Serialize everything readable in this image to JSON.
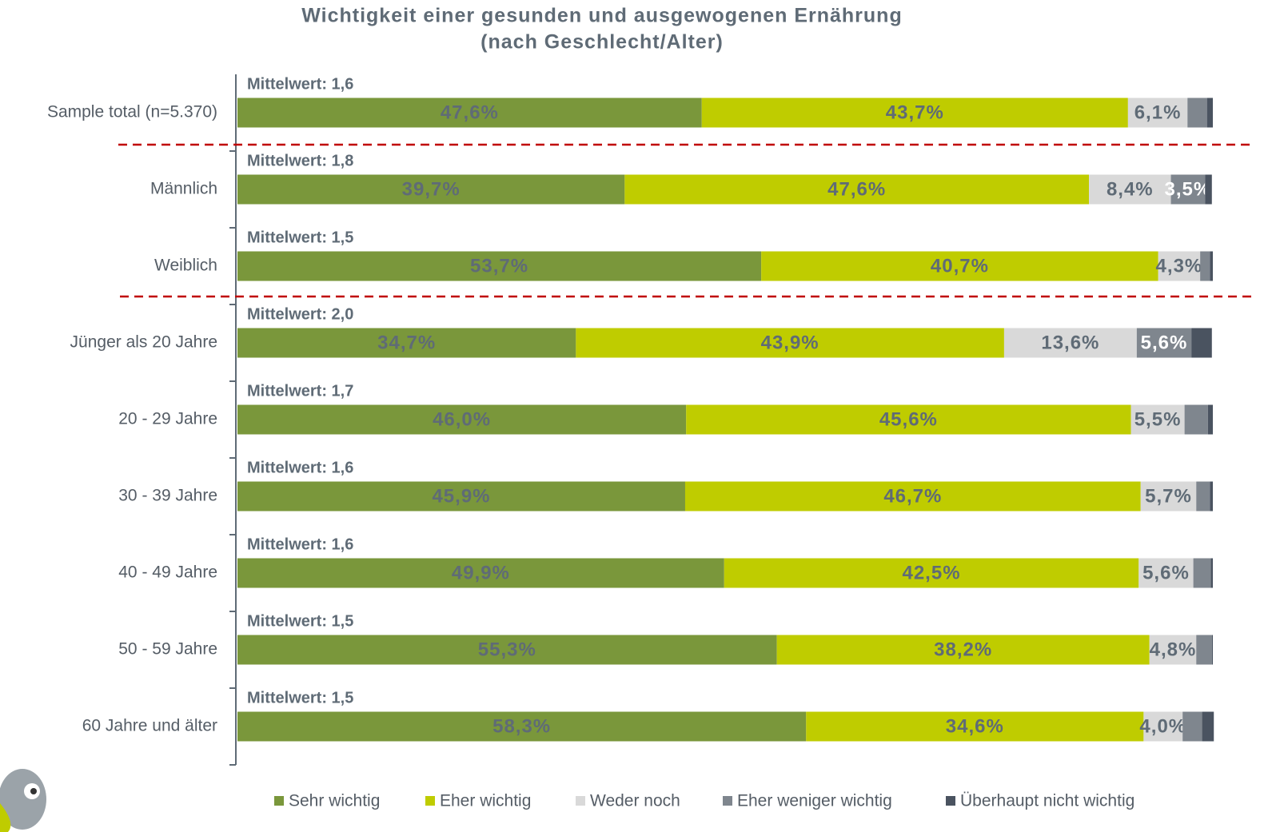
{
  "chart_data": {
    "type": "stacked-bar-horizontal",
    "title": "Wichtigkeit einer gesunden und ausgewogenen Ernährung",
    "subtitle": "(nach Geschlecht/Alter)",
    "categories": [
      "Sample total (n=5.370)",
      "Männlich",
      "Weiblich",
      "Jünger als 20 Jahre",
      "20 - 29 Jahre",
      "30 - 39 Jahre",
      "40 - 49 Jahre",
      "50 - 59 Jahre",
      "60 Jahre und älter"
    ],
    "annotations": [
      "Mittelwert: 1,6",
      "Mittelwert: 1,8",
      "Mittelwert: 1,5",
      "Mittelwert: 2,0",
      "Mittelwert: 1,7",
      "Mittelwert: 1,6",
      "Mittelwert: 1,6",
      "Mittelwert: 1,5",
      "Mittelwert: 1,5"
    ],
    "xlim": [
      0,
      100
    ],
    "legend": "bottom",
    "series": [
      {
        "name": "Sehr wichtig",
        "color": "#7a973b",
        "values": [
          47.6,
          39.7,
          53.7,
          34.7,
          46.0,
          45.9,
          49.9,
          55.3,
          58.3
        ],
        "value_labels": [
          "47,6%",
          "39,7%",
          "53,7%",
          "34,7%",
          "46,0%",
          "45,9%",
          "49,9%",
          "55,3%",
          "58,3%"
        ]
      },
      {
        "name": "Eher wichtig",
        "color": "#bfcc00",
        "values": [
          43.7,
          47.6,
          40.7,
          43.9,
          45.6,
          46.7,
          42.5,
          38.2,
          34.6
        ],
        "value_labels": [
          "43,7%",
          "47,6%",
          "40,7%",
          "43,9%",
          "45,6%",
          "46,7%",
          "42,5%",
          "38,2%",
          "34,6%"
        ]
      },
      {
        "name": "Weder noch",
        "color": "#d9d9d9",
        "values": [
          6.1,
          8.4,
          4.3,
          13.6,
          5.5,
          5.7,
          5.6,
          4.8,
          4.0
        ],
        "value_labels": [
          "6,1%",
          "8,4%",
          "4,3%",
          "13,6%",
          "5,5%",
          "5,7%",
          "5,6%",
          "4,8%",
          "4,0%"
        ]
      },
      {
        "name": "Eher weniger wichtig",
        "color": "#7f868e",
        "values": [
          2.0,
          3.5,
          1.0,
          5.6,
          2.4,
          1.4,
          1.8,
          1.6,
          2.0
        ],
        "value_labels": [
          null,
          "3,5%",
          null,
          "5,6%",
          null,
          null,
          null,
          null,
          null
        ]
      },
      {
        "name": "Überhaupt nicht wichtig",
        "color": "#4a5360",
        "values": [
          0.6,
          0.7,
          0.3,
          2.1,
          0.5,
          0.3,
          0.2,
          0.1,
          1.2
        ],
        "value_labels": [
          null,
          null,
          null,
          null,
          null,
          null,
          null,
          null,
          null
        ]
      }
    ]
  }
}
